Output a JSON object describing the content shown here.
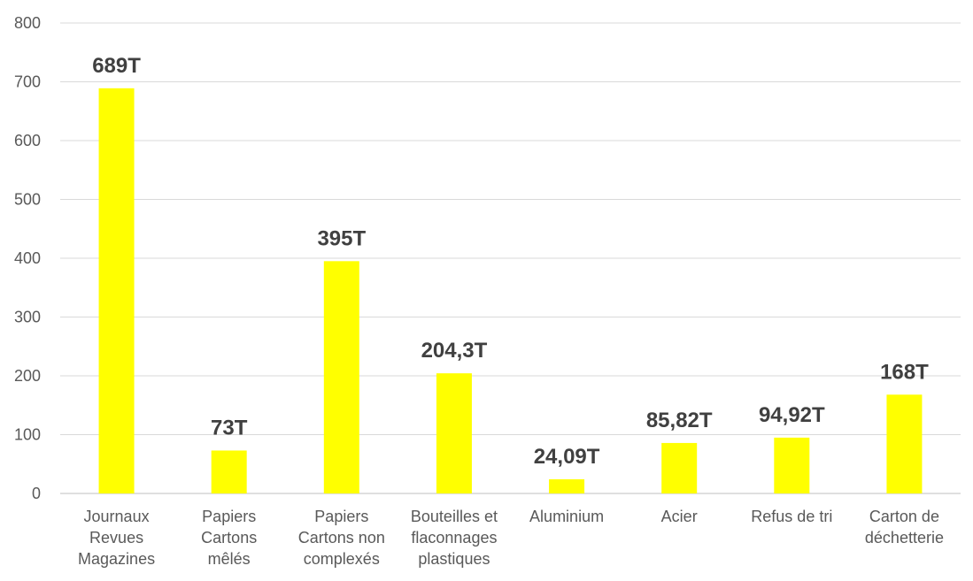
{
  "chart_data": {
    "type": "bar",
    "categories": [
      [
        "Journaux",
        "Revues",
        "Magazines"
      ],
      [
        "Papiers",
        "Cartons",
        "mêlés"
      ],
      [
        "Papiers",
        "Cartons non",
        "complexés"
      ],
      [
        "Bouteilles et",
        "flaconnages",
        "plastiques"
      ],
      [
        "Aluminium"
      ],
      [
        "Acier"
      ],
      [
        "Refus de tri"
      ],
      [
        "Carton de",
        "déchetterie"
      ]
    ],
    "values": [
      689,
      73,
      395,
      204.3,
      24.09,
      85.82,
      94.92,
      168
    ],
    "data_labels": [
      "689T",
      "73T",
      "395T",
      "204,3T",
      "24,09T",
      "85,82T",
      "94,92T",
      "168T"
    ],
    "y_ticks": [
      "0",
      "100",
      "200",
      "300",
      "400",
      "500",
      "600",
      "700",
      "800"
    ],
    "ylim": [
      0,
      800
    ],
    "grid": true,
    "bar_color": "#ffff00",
    "title": "",
    "xlabel": "",
    "ylabel": ""
  }
}
